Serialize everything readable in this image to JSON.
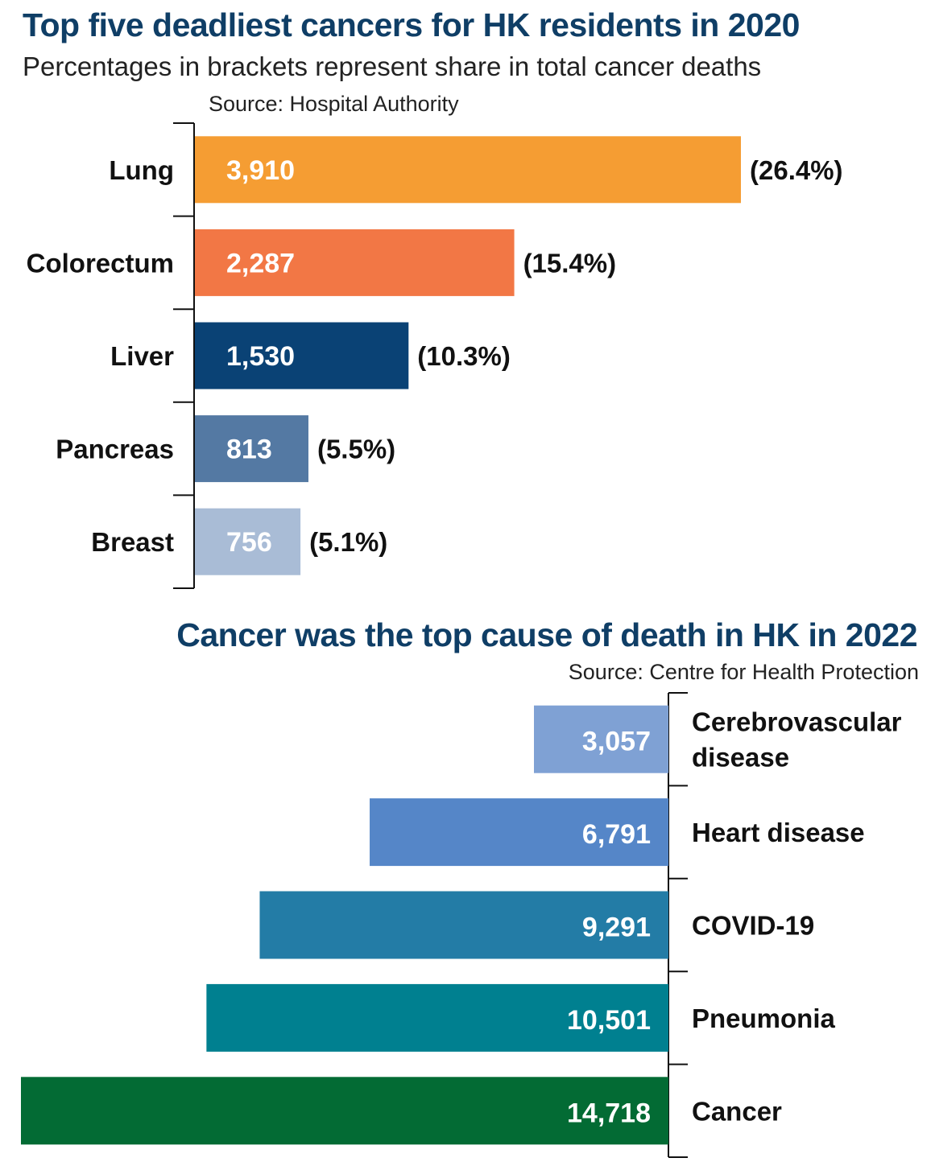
{
  "chart_data": [
    {
      "type": "bar",
      "orientation": "horizontal",
      "title": "Top five deadliest cancers for HK residents in 2020",
      "subtitle": "Percentages in brackets represent share in total cancer deaths",
      "source": "Source: Hospital Authority",
      "categories": [
        "Lung",
        "Colorectum",
        "Liver",
        "Pancreas",
        "Breast"
      ],
      "values": [
        3910,
        2287,
        1530,
        813,
        756
      ],
      "value_labels": [
        "3,910",
        "2,287",
        "1,530",
        "813",
        "756"
      ],
      "shares": [
        "(26.4%)",
        "(15.4%)",
        "(10.3%)",
        "(5.5%)",
        "(5.1%)"
      ],
      "colors": [
        "#f59d33",
        "#f27745",
        "#0a4275",
        "#5479a3",
        "#a9bcd6"
      ],
      "grid": false
    },
    {
      "type": "bar",
      "orientation": "horizontal",
      "direction": "right-to-left",
      "title": "Cancer was the top cause of death in HK in 2022",
      "source": "Source: Centre for Health Protection",
      "categories": [
        "Cerebrovascular disease",
        "Heart disease",
        "COVID-19",
        "Pneumonia",
        "Cancer"
      ],
      "category_lines": [
        [
          "Cerebrovascular",
          "disease"
        ],
        [
          "Heart disease"
        ],
        [
          "COVID-19"
        ],
        [
          "Pneumonia"
        ],
        [
          "Cancer"
        ]
      ],
      "values": [
        3057,
        6791,
        9291,
        10501,
        14718
      ],
      "value_labels": [
        "3,057",
        "6,791",
        "9,291",
        "10,501",
        "14,718"
      ],
      "colors": [
        "#7fa1d4",
        "#5586c8",
        "#237ca6",
        "#008090",
        "#036b34"
      ],
      "grid": false
    }
  ]
}
